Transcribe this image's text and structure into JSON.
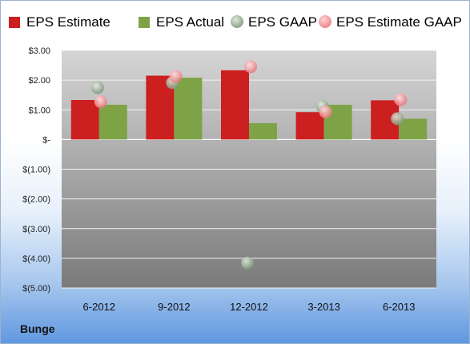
{
  "chart_data": {
    "type": "bar",
    "categories": [
      "6-2012",
      "9-2012",
      "12-2012",
      "3-2013",
      "6-2013"
    ],
    "series": [
      {
        "name": "EPS Estimate",
        "kind": "bar",
        "color": "#cc1f1f",
        "values": [
          1.33,
          2.15,
          2.33,
          0.92,
          1.32
        ]
      },
      {
        "name": "EPS Actual",
        "kind": "bar",
        "color": "#7ea346",
        "values": [
          1.17,
          2.08,
          0.55,
          1.17,
          0.7
        ]
      },
      {
        "name": "EPS GAAP",
        "kind": "scatter",
        "color": "#8fa58a",
        "values": [
          1.75,
          1.91,
          -4.16,
          1.12,
          0.7
        ]
      },
      {
        "name": "EPS Estimate GAAP",
        "kind": "scatter",
        "color": "#ee8a8f",
        "values": [
          1.27,
          2.13,
          2.45,
          0.93,
          1.34
        ]
      }
    ],
    "ylim": [
      -5,
      3
    ],
    "yticks": [
      3,
      2,
      1,
      0,
      -1,
      -2,
      -3,
      -4,
      -5
    ],
    "ytick_labels": [
      "$3.00",
      "$2.00",
      "$1.00",
      "$-",
      "$(1.00)",
      "$(2.00)",
      "$(3.00)",
      "$(4.00)",
      "$(5.00)"
    ],
    "grid": true,
    "legend_position": "top",
    "xlabel": "",
    "ylabel": "",
    "footer_label": "Bunge"
  }
}
